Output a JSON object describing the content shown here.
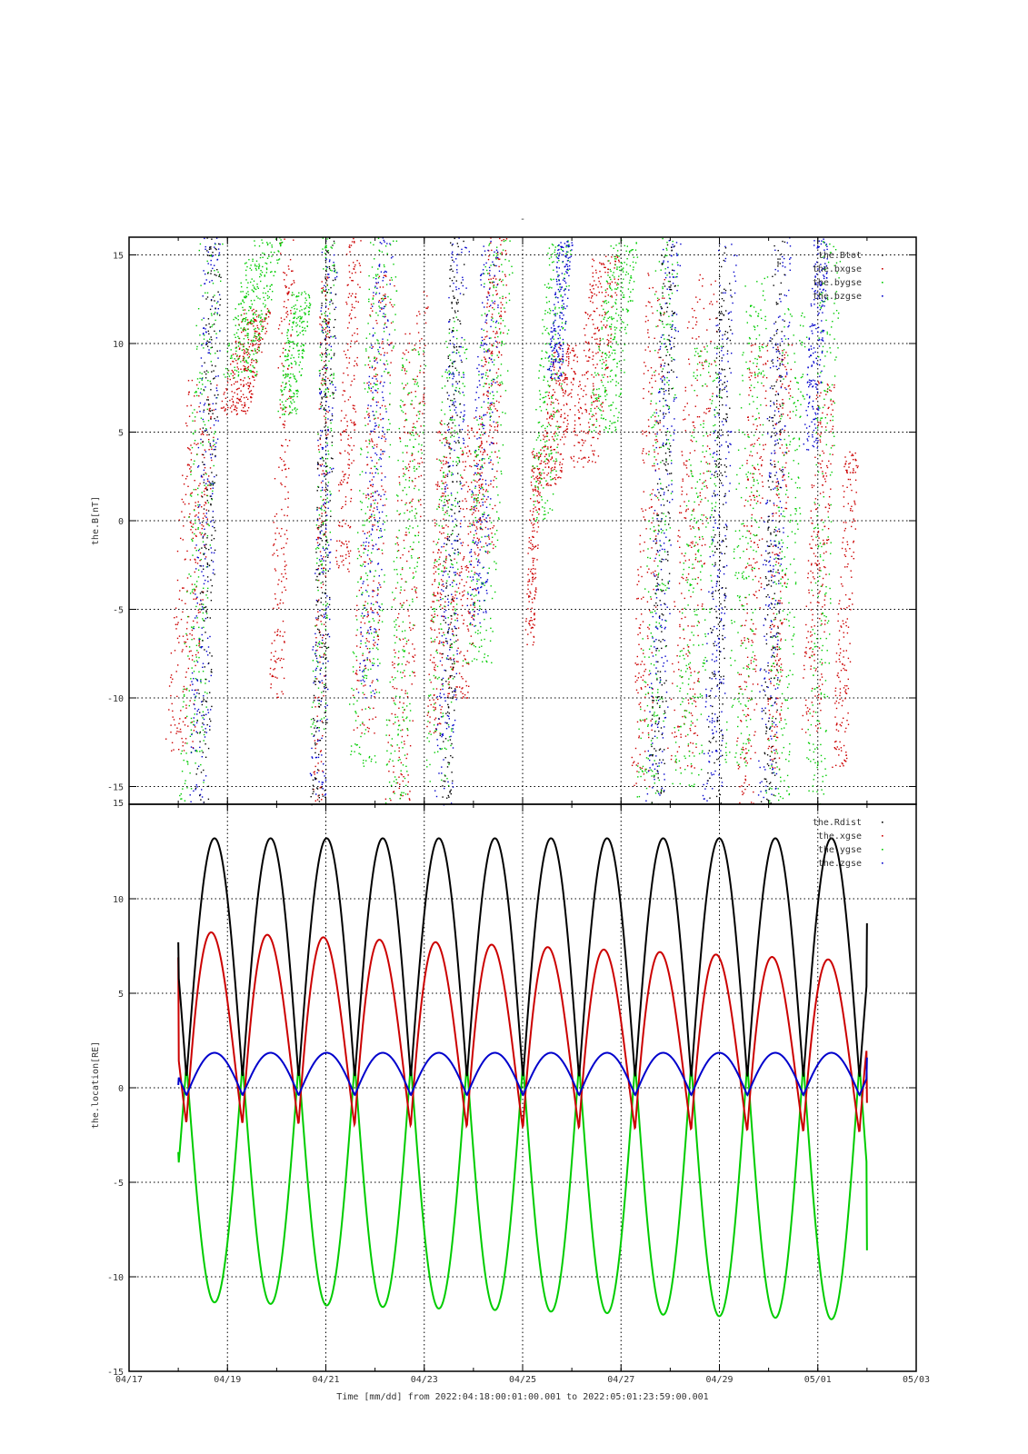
{
  "chart_data": [
    {
      "type": "scatter",
      "title": "-",
      "ylabel": "the.B[nT]",
      "xlabel": "",
      "xlim": [
        "04/17",
        "05/03"
      ],
      "ylim": [
        -16,
        16
      ],
      "yticks": [
        15,
        10,
        5,
        0,
        -5,
        -10,
        -15
      ],
      "grid": true,
      "legend_position": "top-right",
      "legend": [
        {
          "label": "the.Btot",
          "color": "#000000"
        },
        {
          "label": "the.bxgse",
          "color": "#cc0000"
        },
        {
          "label": "the.bygse",
          "color": "#00cc00"
        },
        {
          "label": "the.bzgse",
          "color": "#0000cc"
        }
      ],
      "series": [
        {
          "name": "the.bxgse",
          "color": "#cc0000",
          "clusters": [
            {
              "t": 18.25,
              "ymin": -13,
              "ymax": 8,
              "spread": 0.6
            },
            {
              "t": 19.35,
              "ymin": 6,
              "ymax": 12,
              "spread": 0.6
            },
            {
              "t": 20.1,
              "ymin": -10,
              "ymax": 16,
              "spread": 0.3
            },
            {
              "t": 20.9,
              "ymin": -16,
              "ymax": 14,
              "spread": 0.2
            },
            {
              "t": 21.45,
              "ymin": -3,
              "ymax": 16,
              "spread": 0.3
            },
            {
              "t": 21.95,
              "ymin": -12,
              "ymax": 14,
              "spread": 0.5
            },
            {
              "t": 22.65,
              "ymin": -16,
              "ymax": 13,
              "spread": 0.5
            },
            {
              "t": 23.3,
              "ymin": -12,
              "ymax": 6,
              "spread": 0.3
            },
            {
              "t": 23.85,
              "ymin": -10,
              "ymax": 6,
              "spread": 0.5
            },
            {
              "t": 24.35,
              "ymin": -2,
              "ymax": 16,
              "spread": 0.4
            },
            {
              "t": 25.2,
              "ymin": -7,
              "ymax": 4,
              "spread": 0.2
            },
            {
              "t": 25.7,
              "ymin": 2,
              "ymax": 10,
              "spread": 0.5
            },
            {
              "t": 26.45,
              "ymin": 3,
              "ymax": 15,
              "spread": 0.6
            },
            {
              "t": 27.55,
              "ymin": -15,
              "ymax": 14,
              "spread": 0.4
            },
            {
              "t": 28.45,
              "ymin": -14,
              "ymax": 14,
              "spread": 0.6
            },
            {
              "t": 29.65,
              "ymin": -16,
              "ymax": 10,
              "spread": 0.4
            },
            {
              "t": 30.2,
              "ymin": -14,
              "ymax": 10,
              "spread": 0.3
            },
            {
              "t": 31.0,
              "ymin": -12,
              "ymax": 8,
              "spread": 0.4
            },
            {
              "t": 31.55,
              "ymin": -14,
              "ymax": 4,
              "spread": 0.3
            }
          ]
        },
        {
          "name": "the.bygse",
          "color": "#00cc00",
          "clusters": [
            {
              "t": 18.45,
              "ymin": -16,
              "ymax": 16,
              "spread": 0.5
            },
            {
              "t": 19.5,
              "ymin": 8,
              "ymax": 16,
              "spread": 0.7
            },
            {
              "t": 20.35,
              "ymin": 6,
              "ymax": 13,
              "spread": 0.4
            },
            {
              "t": 20.95,
              "ymin": -12,
              "ymax": 16,
              "spread": 0.3
            },
            {
              "t": 21.95,
              "ymin": -14,
              "ymax": 16,
              "spread": 0.6
            },
            {
              "t": 22.6,
              "ymin": -16,
              "ymax": 10,
              "spread": 0.5
            },
            {
              "t": 23.45,
              "ymin": -15,
              "ymax": 12,
              "spread": 0.5
            },
            {
              "t": 24.3,
              "ymin": -8,
              "ymax": 16,
              "spread": 0.6
            },
            {
              "t": 25.55,
              "ymin": 0,
              "ymax": 16,
              "spread": 0.5
            },
            {
              "t": 26.85,
              "ymin": 5,
              "ymax": 16,
              "spread": 0.6
            },
            {
              "t": 27.75,
              "ymin": -16,
              "ymax": 16,
              "spread": 0.5
            },
            {
              "t": 28.55,
              "ymin": -15,
              "ymax": 10,
              "spread": 0.6
            },
            {
              "t": 29.55,
              "ymin": -14,
              "ymax": 14,
              "spread": 0.5
            },
            {
              "t": 30.35,
              "ymin": -16,
              "ymax": 12,
              "spread": 0.5
            },
            {
              "t": 31.1,
              "ymin": -16,
              "ymax": 16,
              "spread": 0.4
            }
          ]
        },
        {
          "name": "the.bzgse",
          "color": "#0000cc",
          "clusters": [
            {
              "t": 18.55,
              "ymin": -16,
              "ymax": 16,
              "spread": 0.4
            },
            {
              "t": 20.95,
              "ymin": -16,
              "ymax": 16,
              "spread": 0.35
            },
            {
              "t": 22.0,
              "ymin": -10,
              "ymax": 16,
              "spread": 0.4
            },
            {
              "t": 23.55,
              "ymin": -16,
              "ymax": 16,
              "spread": 0.4
            },
            {
              "t": 24.2,
              "ymin": -6,
              "ymax": 16,
              "spread": 0.4
            },
            {
              "t": 25.75,
              "ymin": 8,
              "ymax": 16,
              "spread": 0.3
            },
            {
              "t": 27.85,
              "ymin": -16,
              "ymax": 16,
              "spread": 0.4
            },
            {
              "t": 29.0,
              "ymin": -16,
              "ymax": 16,
              "spread": 0.4
            },
            {
              "t": 30.1,
              "ymin": -16,
              "ymax": 16,
              "spread": 0.4
            },
            {
              "t": 30.95,
              "ymin": 4,
              "ymax": 16,
              "spread": 0.3
            }
          ]
        },
        {
          "name": "the.Btot",
          "color": "#000000",
          "clusters": [
            {
              "t": 18.6,
              "ymin": -16,
              "ymax": 16,
              "spread": 0.3
            },
            {
              "t": 20.95,
              "ymin": -16,
              "ymax": 16,
              "spread": 0.3
            },
            {
              "t": 23.55,
              "ymin": -16,
              "ymax": 16,
              "spread": 0.3
            },
            {
              "t": 27.85,
              "ymin": -16,
              "ymax": 16,
              "spread": 0.3
            },
            {
              "t": 29.0,
              "ymin": -16,
              "ymax": 16,
              "spread": 0.3
            },
            {
              "t": 30.1,
              "ymin": -16,
              "ymax": 16,
              "spread": 0.3
            }
          ]
        }
      ]
    },
    {
      "type": "line",
      "ylabel": "the.location[RE]",
      "xlabel": "Time [mm/dd]  from 2022:04:18:00:01:00.001  to  2022:05:01:23:59:00.001",
      "xlim": [
        "04/17",
        "05/03"
      ],
      "xticks": [
        "04/17",
        "04/19",
        "04/21",
        "04/23",
        "04/25",
        "04/27",
        "04/29",
        "05/01",
        "05/03"
      ],
      "ylim": [
        -15,
        15
      ],
      "yticks": [
        15,
        10,
        5,
        0,
        -5,
        -10,
        -15
      ],
      "grid": true,
      "legend_position": "top-right",
      "legend": [
        {
          "label": "the.Rdist",
          "color": "#000000"
        },
        {
          "label": "the.xgse",
          "color": "#cc0000"
        },
        {
          "label": "the.ygse",
          "color": "#00cc00"
        },
        {
          "label": "the.zgse",
          "color": "#0000cc"
        }
      ],
      "orbit": {
        "t_start": "04/18 00:01",
        "t_end": "05/01 23:59",
        "period_days": 1.14,
        "first_perigee": "04/18 04:00"
      },
      "series": [
        {
          "name": "the.Rdist",
          "color": "#000000",
          "perigee": 0.5,
          "apogee": 13.2,
          "start_value": 7.7,
          "end_value": 8.7
        },
        {
          "name": "the.xgse",
          "color": "#cc0000",
          "min_start": -1.9,
          "max_start": 8.3,
          "min_end": -2.4,
          "max_end": 6.7,
          "start_value": 6.9,
          "end_value": -0.8
        },
        {
          "name": "the.ygse",
          "color": "#00cc00",
          "perigee_value": 1.3,
          "min_start": -11.3,
          "min_end": -12.3,
          "start_value": -3.4,
          "end_value": -8.6
        },
        {
          "name": "the.zgse",
          "color": "#0000cc",
          "max": 1.85,
          "min": -0.4,
          "start_value": 0.15,
          "end_value": 1.6
        }
      ]
    }
  ]
}
